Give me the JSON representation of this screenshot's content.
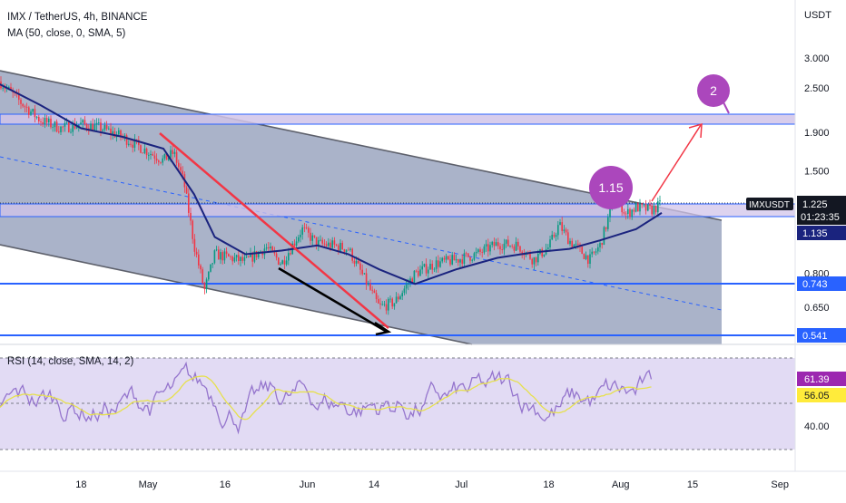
{
  "header": {
    "symbol_line": "IMX / TetherUS, 4h, BINANCE",
    "ma_line": "MA (50, close, 0, SMA, 5)",
    "rsi_line": "RSI (14, close, SMA, 14, 2)"
  },
  "axis": {
    "currency": "USDT"
  },
  "annotations": {
    "target_circle": "2",
    "level_circle": "1.15"
  },
  "current": {
    "symbol": "IMXUSDT",
    "price": "1.225",
    "countdown": "01:23:35"
  },
  "price_tags": [
    {
      "label": "1.135",
      "value": 1.135
    },
    {
      "label": "0.743",
      "value": 0.743
    },
    {
      "label": "0.541",
      "value": 0.541
    }
  ],
  "rsi_tags": [
    {
      "label": "61.39",
      "value": 61.39,
      "color": "#9c27b0",
      "text_color": "#ffffff"
    },
    {
      "label": "56.05",
      "value": 56.05,
      "color": "#ffeb3b",
      "text_color": "#131722"
    }
  ],
  "colors": {
    "channel_fill": "#9ba6bf",
    "channel_line": "#5d606b",
    "mid_line": "#2962ff",
    "level_line": "#2962ff",
    "zone_fill": "#d1c4e9",
    "ma": "#1a237e",
    "candle_up": "#089981",
    "candle_down": "#f23645",
    "red_line": "#f23645",
    "black_arrow": "#000000",
    "circle": "#ab47bc",
    "rsi_line": "#9575cd",
    "rsi_ma": "#e6e04d",
    "rsi_band": "#d5ccef"
  },
  "chart_data": {
    "type": "candlestick",
    "title": "IMX / TetherUS, 4h, BINANCE",
    "price_axis": {
      "unit": "USDT",
      "scale": "log",
      "tick_labels": [
        "3.000",
        "2.500",
        "1.900",
        "1.500",
        "1.225",
        "1.135",
        "0.800",
        "0.743",
        "0.650",
        "0.541"
      ],
      "tick_values": [
        3.0,
        2.5,
        1.9,
        1.5,
        0.8,
        0.65
      ]
    },
    "time_axis": {
      "tick_labels": [
        "18",
        "May",
        "16",
        "Jun",
        "14",
        "Jul",
        "18",
        "Aug",
        "15",
        "Sep"
      ]
    },
    "series_close_path": [
      [
        "2022-04-01",
        2.7
      ],
      [
        "2022-04-06",
        2.3
      ],
      [
        "2022-04-10",
        2.05
      ],
      [
        "2022-04-14",
        1.95
      ],
      [
        "2022-04-18",
        2.0
      ],
      [
        "2022-04-22",
        1.95
      ],
      [
        "2022-04-26",
        1.85
      ],
      [
        "2022-04-30",
        1.72
      ],
      [
        "2022-05-04",
        1.6
      ],
      [
        "2022-05-06",
        1.68
      ],
      [
        "2022-05-08",
        1.4
      ],
      [
        "2022-05-10",
        0.95
      ],
      [
        "2022-05-12",
        0.72
      ],
      [
        "2022-05-14",
        0.9
      ],
      [
        "2022-05-17",
        0.88
      ],
      [
        "2022-05-20",
        0.86
      ],
      [
        "2022-05-24",
        0.94
      ],
      [
        "2022-05-27",
        0.85
      ],
      [
        "2022-05-31",
        1.05
      ],
      [
        "2022-06-03",
        0.96
      ],
      [
        "2022-06-06",
        0.95
      ],
      [
        "2022-06-09",
        0.93
      ],
      [
        "2022-06-12",
        0.78
      ],
      [
        "2022-06-15",
        0.65
      ],
      [
        "2022-06-18",
        0.67
      ],
      [
        "2022-06-22",
        0.8
      ],
      [
        "2022-06-26",
        0.85
      ],
      [
        "2022-06-30",
        0.87
      ],
      [
        "2022-07-04",
        0.9
      ],
      [
        "2022-07-08",
        0.96
      ],
      [
        "2022-07-12",
        0.95
      ],
      [
        "2022-07-15",
        0.87
      ],
      [
        "2022-07-18",
        0.94
      ],
      [
        "2022-07-20",
        1.08
      ],
      [
        "2022-07-22",
        0.98
      ],
      [
        "2022-07-26",
        0.87
      ],
      [
        "2022-07-28",
        0.95
      ],
      [
        "2022-07-31",
        1.3
      ],
      [
        "2022-08-02",
        1.15
      ],
      [
        "2022-08-04",
        1.2
      ],
      [
        "2022-08-07",
        1.18
      ],
      [
        "2022-08-09",
        1.225
      ]
    ],
    "moving_average": {
      "name": "MA (50, close, 0, SMA, 5)",
      "path": [
        [
          "2022-04-01",
          2.6
        ],
        [
          "2022-04-10",
          2.25
        ],
        [
          "2022-04-18",
          1.95
        ],
        [
          "2022-04-26",
          1.85
        ],
        [
          "2022-05-04",
          1.72
        ],
        [
          "2022-05-10",
          1.3
        ],
        [
          "2022-05-14",
          1.0
        ],
        [
          "2022-05-20",
          0.9
        ],
        [
          "2022-05-27",
          0.92
        ],
        [
          "2022-06-03",
          0.95
        ],
        [
          "2022-06-09",
          0.9
        ],
        [
          "2022-06-15",
          0.82
        ],
        [
          "2022-06-22",
          0.75
        ],
        [
          "2022-06-30",
          0.82
        ],
        [
          "2022-07-08",
          0.88
        ],
        [
          "2022-07-15",
          0.91
        ],
        [
          "2022-07-22",
          0.93
        ],
        [
          "2022-07-28",
          0.98
        ],
        [
          "2022-08-04",
          1.05
        ],
        [
          "2022-08-09",
          1.16
        ]
      ]
    },
    "horizontal_levels": [
      1.135,
      0.743,
      0.541
    ],
    "zones": [
      [
        1.9,
        2.0
      ],
      [
        1.12,
        1.22
      ]
    ],
    "rsi": {
      "name": "RSI (14, close, SMA, 14, 2)",
      "last": 61.39,
      "ma_last": 56.05,
      "tick_labels": [
        "40.00"
      ],
      "bands": [
        30,
        70
      ]
    }
  }
}
